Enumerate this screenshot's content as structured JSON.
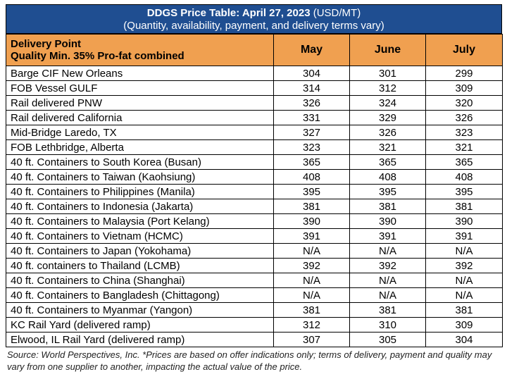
{
  "title": {
    "bold": "DDGS Price Table: April 27, 2023",
    "unit": " (USD/MT)",
    "subtitle": "(Quantity, availability, payment, and delivery terms vary)"
  },
  "header": {
    "delivery_point_line1": "Delivery Point",
    "delivery_point_line2": "Quality Min. 35% Pro-fat combined",
    "months": [
      "May",
      "June",
      "July"
    ]
  },
  "rows": [
    {
      "name": "Barge CIF New Orleans",
      "may": "304",
      "june": "301",
      "july": "299"
    },
    {
      "name": "FOB Vessel GULF",
      "may": "314",
      "june": "312",
      "july": "309"
    },
    {
      "name": "Rail delivered PNW",
      "may": "326",
      "june": "324",
      "july": "320"
    },
    {
      "name": "Rail delivered California",
      "may": "331",
      "june": "329",
      "july": "326"
    },
    {
      "name": "Mid-Bridge Laredo, TX",
      "may": "327",
      "june": "326",
      "july": "323"
    },
    {
      "name": "FOB Lethbridge, Alberta",
      "may": "323",
      "june": "321",
      "july": "321"
    },
    {
      "name": "40 ft. Containers to South Korea (Busan)",
      "may": "365",
      "june": "365",
      "july": "365"
    },
    {
      "name": "40 ft. Containers to Taiwan (Kaohsiung)",
      "may": "408",
      "june": "408",
      "july": "408"
    },
    {
      "name": "40 ft. Containers to Philippines (Manila)",
      "may": "395",
      "june": "395",
      "july": "395"
    },
    {
      "name": "40 ft. Containers to Indonesia (Jakarta)",
      "may": "381",
      "june": "381",
      "july": "381"
    },
    {
      "name": "40 ft. Containers to Malaysia (Port Kelang)",
      "may": "390",
      "june": "390",
      "july": "390"
    },
    {
      "name": "40 ft. Containers to Vietnam (HCMC)",
      "may": "391",
      "june": "391",
      "july": "391"
    },
    {
      "name": "40 ft. Containers to Japan (Yokohama)",
      "may": "N/A",
      "june": "N/A",
      "july": "N/A"
    },
    {
      "name": "40 ft. containers to Thailand (LCMB)",
      "may": "392",
      "june": "392",
      "july": "392"
    },
    {
      "name": "40 ft. Containers to China (Shanghai)",
      "may": "N/A",
      "june": "N/A",
      "july": "N/A"
    },
    {
      "name": "40 ft. Containers to Bangladesh (Chittagong)",
      "may": "N/A",
      "june": "N/A",
      "july": "N/A"
    },
    {
      "name": "40 ft. Containers to Myanmar (Yangon)",
      "may": "381",
      "june": "381",
      "july": "381"
    },
    {
      "name": "KC Rail Yard (delivered ramp)",
      "may": "312",
      "june": "310",
      "july": "309"
    },
    {
      "name": "Elwood, IL Rail Yard (delivered ramp)",
      "may": "307",
      "june": "305",
      "july": "304"
    }
  ],
  "source": "Source: World Perspectives, Inc. *Prices are based on offer indications only; terms of delivery, payment and quality may vary from one supplier to another, impacting the actual value of the price.",
  "colors": {
    "title_bg": "#1f4e91",
    "header_bg": "#f0a050"
  }
}
